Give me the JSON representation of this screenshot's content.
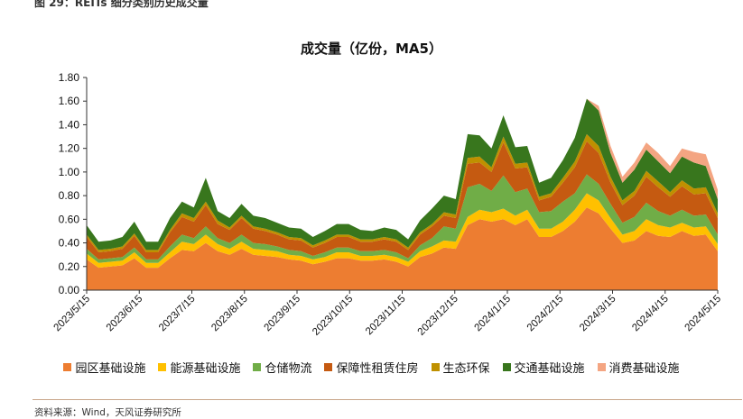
{
  "figure_caption": "图 29：REITs 细分类别历史成交量",
  "source_text": "资料来源：Wind，天风证券研究所",
  "chart_data": {
    "type": "area",
    "title": "成交量（亿份，MA5）",
    "xlabel": "",
    "ylabel": "",
    "ylim": [
      0,
      1.8
    ],
    "yticks": [
      "0.00",
      "0.20",
      "0.40",
      "0.60",
      "0.80",
      "1.00",
      "1.20",
      "1.40",
      "1.60",
      "1.80"
    ],
    "xticks": [
      "2023/5/15",
      "2023/6/15",
      "2023/7/15",
      "2023/8/15",
      "2023/9/15",
      "2023/10/15",
      "2023/11/15",
      "2023/12/15",
      "2024/1/15",
      "2024/2/15",
      "2024/3/15",
      "2024/4/15",
      "2024/5/15"
    ],
    "x": [
      "2023/5/15",
      "2023/5/22",
      "2023/5/29",
      "2023/6/5",
      "2023/6/12",
      "2023/6/19",
      "2023/6/26",
      "2023/7/3",
      "2023/7/10",
      "2023/7/17",
      "2023/7/24",
      "2023/7/31",
      "2023/8/7",
      "2023/8/14",
      "2023/8/21",
      "2023/8/28",
      "2023/9/4",
      "2023/9/11",
      "2023/9/18",
      "2023/9/25",
      "2023/10/2",
      "2023/10/9",
      "2023/10/16",
      "2023/10/23",
      "2023/10/30",
      "2023/11/6",
      "2023/11/13",
      "2023/11/20",
      "2023/11/27",
      "2023/12/4",
      "2023/12/11",
      "2023/12/18",
      "2023/12/25",
      "2024/1/1",
      "2024/1/8",
      "2024/1/15",
      "2024/1/22",
      "2024/1/29",
      "2024/2/5",
      "2024/2/12",
      "2024/2/19",
      "2024/2/26",
      "2024/3/4",
      "2024/3/11",
      "2024/3/18",
      "2024/3/25",
      "2024/4/1",
      "2024/4/8",
      "2024/4/15",
      "2024/4/22",
      "2024/4/29",
      "2024/5/6",
      "2024/5/13",
      "2024/5/17"
    ],
    "legend_position": "bottom",
    "grid": false,
    "series": [
      {
        "name": "园区基础设施",
        "color": "#ED7D31",
        "values": [
          0.26,
          0.19,
          0.2,
          0.21,
          0.27,
          0.19,
          0.19,
          0.27,
          0.34,
          0.33,
          0.4,
          0.33,
          0.3,
          0.35,
          0.3,
          0.29,
          0.28,
          0.26,
          0.25,
          0.22,
          0.24,
          0.27,
          0.27,
          0.25,
          0.25,
          0.26,
          0.24,
          0.2,
          0.28,
          0.31,
          0.36,
          0.35,
          0.55,
          0.6,
          0.58,
          0.6,
          0.55,
          0.6,
          0.45,
          0.45,
          0.5,
          0.58,
          0.7,
          0.65,
          0.52,
          0.4,
          0.42,
          0.5,
          0.46,
          0.45,
          0.5,
          0.46,
          0.47,
          0.33
        ]
      },
      {
        "name": "能源基础设施",
        "color": "#FFC000",
        "values": [
          0.05,
          0.04,
          0.04,
          0.04,
          0.05,
          0.04,
          0.04,
          0.05,
          0.07,
          0.06,
          0.07,
          0.06,
          0.05,
          0.06,
          0.05,
          0.05,
          0.05,
          0.04,
          0.04,
          0.04,
          0.04,
          0.05,
          0.05,
          0.04,
          0.04,
          0.04,
          0.04,
          0.04,
          0.05,
          0.06,
          0.06,
          0.06,
          0.07,
          0.08,
          0.08,
          0.09,
          0.08,
          0.08,
          0.07,
          0.07,
          0.08,
          0.1,
          0.12,
          0.11,
          0.09,
          0.07,
          0.08,
          0.1,
          0.09,
          0.08,
          0.07,
          0.07,
          0.07,
          0.06
        ]
      },
      {
        "name": "仓储物流",
        "color": "#70AD47",
        "values": [
          0.04,
          0.03,
          0.03,
          0.03,
          0.04,
          0.03,
          0.03,
          0.05,
          0.06,
          0.05,
          0.07,
          0.05,
          0.05,
          0.06,
          0.05,
          0.05,
          0.04,
          0.04,
          0.04,
          0.03,
          0.04,
          0.04,
          0.04,
          0.04,
          0.04,
          0.04,
          0.04,
          0.03,
          0.05,
          0.07,
          0.12,
          0.11,
          0.25,
          0.22,
          0.18,
          0.28,
          0.2,
          0.18,
          0.14,
          0.15,
          0.17,
          0.14,
          0.16,
          0.14,
          0.12,
          0.1,
          0.12,
          0.14,
          0.12,
          0.1,
          0.11,
          0.1,
          0.1,
          0.08
        ]
      },
      {
        "name": "保障性租赁住房",
        "color": "#C55A11",
        "values": [
          0.1,
          0.06,
          0.06,
          0.07,
          0.1,
          0.06,
          0.06,
          0.12,
          0.15,
          0.14,
          0.18,
          0.12,
          0.11,
          0.14,
          0.12,
          0.11,
          0.1,
          0.09,
          0.09,
          0.07,
          0.08,
          0.09,
          0.09,
          0.08,
          0.08,
          0.09,
          0.09,
          0.07,
          0.09,
          0.1,
          0.09,
          0.09,
          0.2,
          0.18,
          0.16,
          0.28,
          0.2,
          0.18,
          0.1,
          0.12,
          0.16,
          0.22,
          0.28,
          0.26,
          0.18,
          0.15,
          0.18,
          0.22,
          0.2,
          0.16,
          0.2,
          0.18,
          0.18,
          0.14
        ]
      },
      {
        "name": "生态环保",
        "color": "#BF9000",
        "values": [
          0.02,
          0.02,
          0.02,
          0.02,
          0.02,
          0.02,
          0.02,
          0.02,
          0.03,
          0.03,
          0.03,
          0.03,
          0.02,
          0.02,
          0.02,
          0.02,
          0.02,
          0.02,
          0.02,
          0.02,
          0.02,
          0.02,
          0.02,
          0.02,
          0.02,
          0.02,
          0.02,
          0.02,
          0.02,
          0.02,
          0.03,
          0.03,
          0.05,
          0.05,
          0.04,
          0.05,
          0.04,
          0.04,
          0.03,
          0.03,
          0.04,
          0.05,
          0.06,
          0.06,
          0.05,
          0.04,
          0.04,
          0.05,
          0.05,
          0.04,
          0.05,
          0.05,
          0.05,
          0.04
        ]
      },
      {
        "name": "交通基础设施",
        "color": "#38761D",
        "values": [
          0.08,
          0.07,
          0.07,
          0.08,
          0.1,
          0.07,
          0.07,
          0.1,
          0.1,
          0.09,
          0.2,
          0.08,
          0.08,
          0.1,
          0.09,
          0.09,
          0.08,
          0.08,
          0.08,
          0.07,
          0.08,
          0.09,
          0.09,
          0.08,
          0.07,
          0.08,
          0.08,
          0.07,
          0.1,
          0.13,
          0.14,
          0.13,
          0.2,
          0.18,
          0.16,
          0.18,
          0.14,
          0.14,
          0.12,
          0.13,
          0.15,
          0.2,
          0.3,
          0.3,
          0.2,
          0.15,
          0.18,
          0.18,
          0.17,
          0.16,
          0.2,
          0.22,
          0.18,
          0.12
        ]
      },
      {
        "name": "消费基础设施",
        "color": "#F4A582",
        "values": [
          0,
          0,
          0,
          0,
          0,
          0,
          0,
          0,
          0,
          0,
          0,
          0,
          0,
          0,
          0,
          0,
          0,
          0,
          0,
          0,
          0,
          0,
          0,
          0,
          0,
          0,
          0,
          0,
          0,
          0,
          0,
          0,
          0,
          0,
          0,
          0,
          0,
          0,
          0,
          0,
          0,
          0,
          0,
          0.04,
          0.06,
          0.05,
          0.06,
          0.06,
          0.07,
          0.06,
          0.07,
          0.09,
          0.1,
          0.08
        ]
      }
    ]
  }
}
